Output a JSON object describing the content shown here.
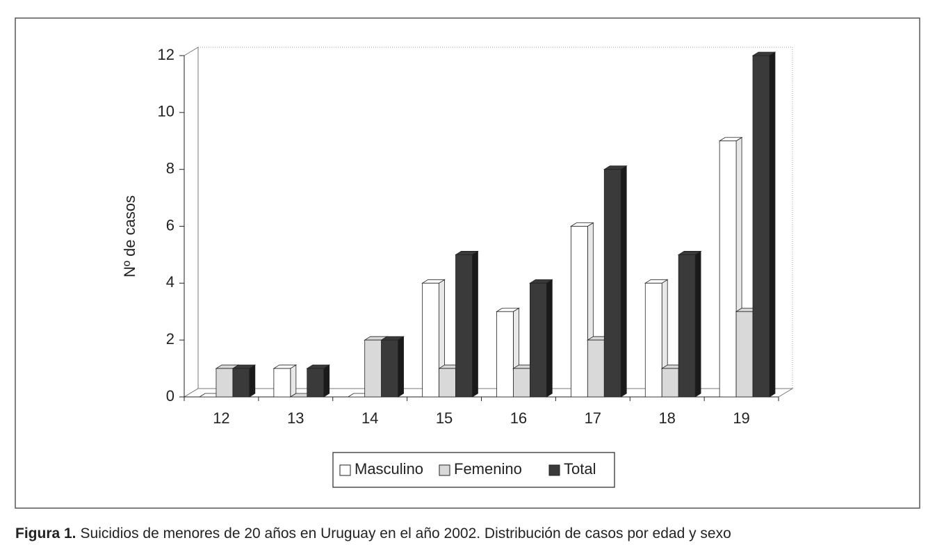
{
  "chart_data": {
    "type": "bar3d",
    "y_label": "Nº de casos",
    "categories": [
      "12",
      "13",
      "14",
      "15",
      "16",
      "17",
      "18",
      "19"
    ],
    "series": [
      {
        "name": "Masculino",
        "color": "#ffffff",
        "values": [
          0,
          1,
          0,
          4,
          3,
          6,
          4,
          9
        ]
      },
      {
        "name": "Femenino",
        "color": "#d9d9d9",
        "values": [
          1,
          0,
          2,
          1,
          1,
          2,
          1,
          3
        ]
      },
      {
        "name": "Total",
        "color": "#3a3a3a",
        "values": [
          1,
          1,
          2,
          5,
          4,
          8,
          5,
          12
        ]
      }
    ],
    "ylim": [
      0,
      12
    ],
    "yticks": [
      0,
      2,
      4,
      6,
      8,
      10,
      12
    ],
    "legend": "bottom",
    "figure_label": "Figura 1.",
    "caption": "Suicidios de menores de 20 años en Uruguay en el año 2002. Distribución de casos por edad y sexo"
  }
}
